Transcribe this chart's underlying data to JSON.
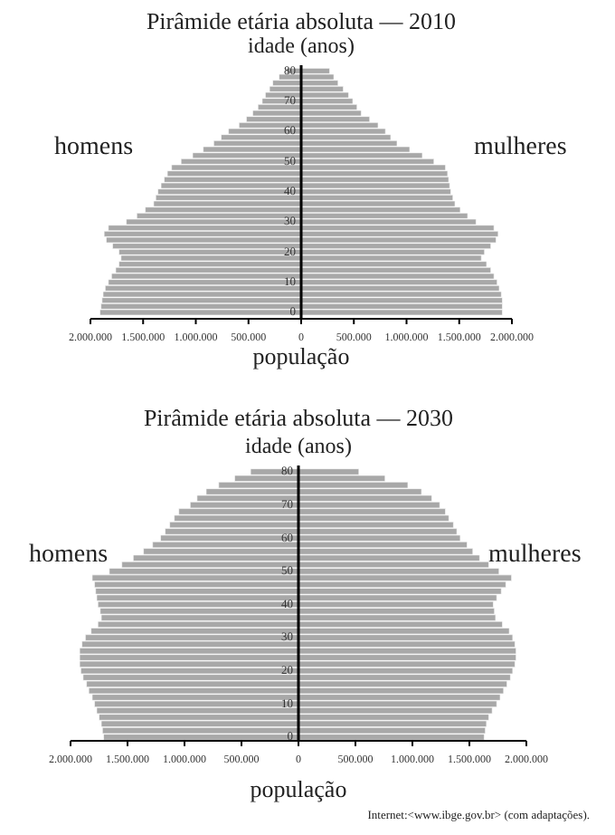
{
  "chart_data": [
    {
      "type": "bar",
      "orientation": "horizontal",
      "stacked": true,
      "title": "Pirâmide etária absoluta — 2010",
      "ylabel": "idade (anos)",
      "xlabel": "população",
      "x": [
        0,
        2,
        4,
        6,
        8,
        10,
        12,
        14,
        16,
        18,
        20,
        22,
        24,
        26,
        28,
        30,
        32,
        34,
        36,
        38,
        40,
        42,
        44,
        46,
        48,
        50,
        52,
        54,
        56,
        58,
        60,
        62,
        64,
        66,
        68,
        70,
        72,
        74,
        76,
        78,
        80
      ],
      "series": [
        {
          "name": "homens",
          "color": "#a8a8a8",
          "values": [
            -1910000,
            -1900000,
            -1890000,
            -1880000,
            -1860000,
            -1830000,
            -1800000,
            -1760000,
            -1730000,
            -1710000,
            -1730000,
            -1790000,
            -1850000,
            -1870000,
            -1830000,
            -1660000,
            -1560000,
            -1480000,
            -1400000,
            -1380000,
            -1360000,
            -1330000,
            -1300000,
            -1270000,
            -1230000,
            -1140000,
            -1030000,
            -930000,
            -830000,
            -760000,
            -690000,
            -590000,
            -520000,
            -460000,
            -410000,
            -370000,
            -340000,
            -300000,
            -270000,
            -210000,
            -140000
          ]
        },
        {
          "name": "mulheres",
          "color": "#a8a8a8",
          "values": [
            1910000,
            1910000,
            1910000,
            1900000,
            1880000,
            1860000,
            1830000,
            1800000,
            1760000,
            1710000,
            1740000,
            1800000,
            1850000,
            1870000,
            1830000,
            1660000,
            1580000,
            1510000,
            1460000,
            1440000,
            1420000,
            1410000,
            1400000,
            1390000,
            1370000,
            1260000,
            1150000,
            1030000,
            910000,
            850000,
            800000,
            730000,
            650000,
            570000,
            530000,
            490000,
            450000,
            400000,
            350000,
            310000,
            270000
          ]
        }
      ],
      "xlim": [
        -2000000,
        2000000
      ],
      "xticks": [
        {
          "value": -2000000,
          "label": "2.000.000"
        },
        {
          "value": -1500000,
          "label": "1.500.000"
        },
        {
          "value": -1000000,
          "label": "1.000.000"
        },
        {
          "value": -500000,
          "label": "500.000"
        },
        0,
        {
          "value": 500000,
          "label": "500.000"
        },
        {
          "value": 1000000,
          "label": "1.000.000"
        },
        {
          "value": 1500000,
          "label": "1.500.000"
        },
        {
          "value": 2000000,
          "label": "2.000.000"
        }
      ],
      "ylim": [
        -2,
        82
      ],
      "yticks": [
        0,
        10,
        20,
        30,
        40,
        50,
        60,
        70,
        80
      ]
    },
    {
      "type": "bar",
      "orientation": "horizontal",
      "stacked": true,
      "title": "Pirâmide etária absoluta — 2030",
      "ylabel": "idade (anos)",
      "xlabel": "população",
      "annotations": [
        "Internet:<www.ibge.gov.br> (com adaptações)."
      ],
      "x": [
        0,
        2,
        4,
        6,
        8,
        10,
        12,
        14,
        16,
        18,
        20,
        22,
        24,
        26,
        28,
        30,
        32,
        34,
        36,
        38,
        40,
        42,
        44,
        46,
        48,
        50,
        52,
        54,
        56,
        58,
        60,
        62,
        64,
        66,
        68,
        70,
        72,
        74,
        76,
        78,
        80
      ],
      "series": [
        {
          "name": "homens",
          "color": "#a8a8a8",
          "values": [
            -1710000,
            -1720000,
            -1730000,
            -1750000,
            -1770000,
            -1790000,
            -1810000,
            -1840000,
            -1860000,
            -1890000,
            -1910000,
            -1920000,
            -1920000,
            -1920000,
            -1900000,
            -1870000,
            -1820000,
            -1760000,
            -1730000,
            -1740000,
            -1760000,
            -1770000,
            -1780000,
            -1790000,
            -1810000,
            -1660000,
            -1550000,
            -1450000,
            -1360000,
            -1280000,
            -1210000,
            -1170000,
            -1130000,
            -1090000,
            -1050000,
            -950000,
            -890000,
            -810000,
            -700000,
            -560000,
            -420000
          ]
        },
        {
          "name": "mulheres",
          "color": "#a8a8a8",
          "values": [
            1630000,
            1640000,
            1650000,
            1670000,
            1700000,
            1740000,
            1770000,
            1800000,
            1830000,
            1860000,
            1880000,
            1900000,
            1910000,
            1910000,
            1900000,
            1880000,
            1850000,
            1790000,
            1730000,
            1720000,
            1710000,
            1740000,
            1780000,
            1820000,
            1870000,
            1760000,
            1670000,
            1590000,
            1530000,
            1480000,
            1420000,
            1390000,
            1360000,
            1320000,
            1290000,
            1240000,
            1170000,
            1080000,
            960000,
            760000,
            530000
          ]
        }
      ],
      "xlim": [
        -2000000,
        2000000
      ],
      "xticks": [
        {
          "value": -2000000,
          "label": "2.000.000"
        },
        {
          "value": -1500000,
          "label": "1.500.000"
        },
        {
          "value": -1000000,
          "label": "1.000.000"
        },
        {
          "value": -500000,
          "label": "500.000"
        },
        0,
        {
          "value": 500000,
          "label": "500.000"
        },
        {
          "value": 1000000,
          "label": "1.000.000"
        },
        {
          "value": 1500000,
          "label": "1.500.000"
        },
        {
          "value": 2000000,
          "label": "2.000.000"
        }
      ],
      "ylim": [
        -1,
        82
      ],
      "yticks": [
        0,
        10,
        20,
        30,
        40,
        50,
        60,
        70,
        80
      ]
    }
  ]
}
